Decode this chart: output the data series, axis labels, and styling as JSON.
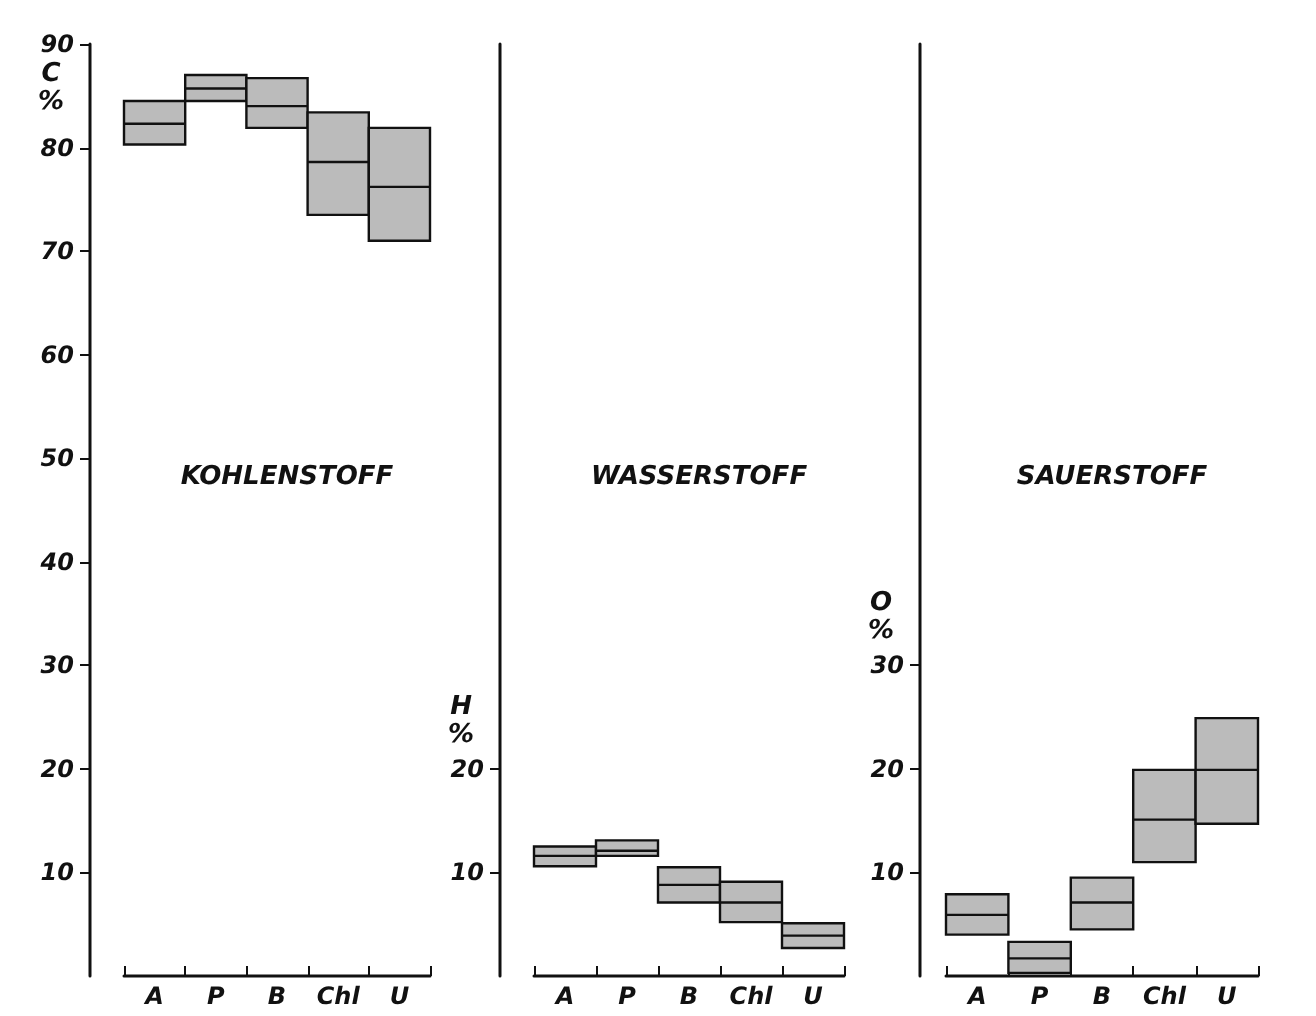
{
  "chart_data": [
    {
      "type": "box",
      "title": "KOHLENSTOFF",
      "ylabel": "C %",
      "categories": [
        "A",
        "P",
        "B",
        "Chl",
        "U"
      ],
      "ylim": [
        0,
        90
      ],
      "yticks": [
        10,
        20,
        30,
        40,
        50,
        60,
        70,
        80,
        90
      ],
      "grid": false,
      "series": [
        {
          "color": "#bbbbbb",
          "boxes": [
            {
              "low": 80.3,
              "q1": 80.3,
              "median": 82.3,
              "q3": 84.5,
              "high": 84.5
            },
            {
              "low": 84.5,
              "q1": 84.5,
              "median": 85.7,
              "q3": 87.0,
              "high": 87.0
            },
            {
              "low": 81.9,
              "q1": 81.9,
              "median": 84.0,
              "q3": 86.7,
              "high": 86.7
            },
            {
              "low": 73.5,
              "q1": 73.5,
              "median": 78.6,
              "q3": 83.4,
              "high": 83.4
            },
            {
              "low": 71.0,
              "q1": 71.0,
              "median": 76.2,
              "q3": 81.9,
              "high": 81.9
            }
          ]
        }
      ]
    },
    {
      "type": "box",
      "title": "WASSERSTOFF",
      "ylabel": "H %",
      "categories": [
        "A",
        "P",
        "B",
        "Chl",
        "U"
      ],
      "ylim": [
        0,
        90
      ],
      "yticks": [
        10,
        20
      ],
      "grid": false,
      "series": [
        {
          "color": "#bbbbbb",
          "boxes": [
            {
              "low": 10.6,
              "q1": 10.6,
              "median": 11.6,
              "q3": 12.5,
              "high": 12.5
            },
            {
              "low": 11.6,
              "q1": 11.6,
              "median": 12.1,
              "q3": 13.1,
              "high": 13.1
            },
            {
              "low": 7.1,
              "q1": 7.1,
              "median": 8.8,
              "q3": 10.5,
              "high": 10.5
            },
            {
              "low": 5.2,
              "q1": 5.2,
              "median": 7.1,
              "q3": 9.1,
              "high": 9.1
            },
            {
              "low": 2.7,
              "q1": 2.7,
              "median": 3.9,
              "q3": 5.1,
              "high": 5.1
            }
          ]
        }
      ]
    },
    {
      "type": "box",
      "title": "SAUERSTOFF",
      "ylabel": "O %",
      "categories": [
        "A",
        "P",
        "B",
        "Chl",
        "U"
      ],
      "ylim": [
        0,
        90
      ],
      "yticks": [
        10,
        20,
        30
      ],
      "grid": false,
      "series": [
        {
          "color": "#bbbbbb",
          "boxes": [
            {
              "low": 4.0,
              "q1": 4.0,
              "median": 5.9,
              "q3": 7.9,
              "high": 7.9
            },
            {
              "low": 0.3,
              "q1": 0.3,
              "median": 1.7,
              "q3": 3.3,
              "high": 3.3
            },
            {
              "low": 4.5,
              "q1": 4.5,
              "median": 7.1,
              "q3": 9.5,
              "high": 9.5
            },
            {
              "low": 11.0,
              "q1": 11.0,
              "median": 15.1,
              "q3": 19.9,
              "high": 19.9
            },
            {
              "low": 14.7,
              "q1": 14.7,
              "median": 19.9,
              "q3": 24.9,
              "high": 24.9
            }
          ]
        }
      ]
    }
  ]
}
